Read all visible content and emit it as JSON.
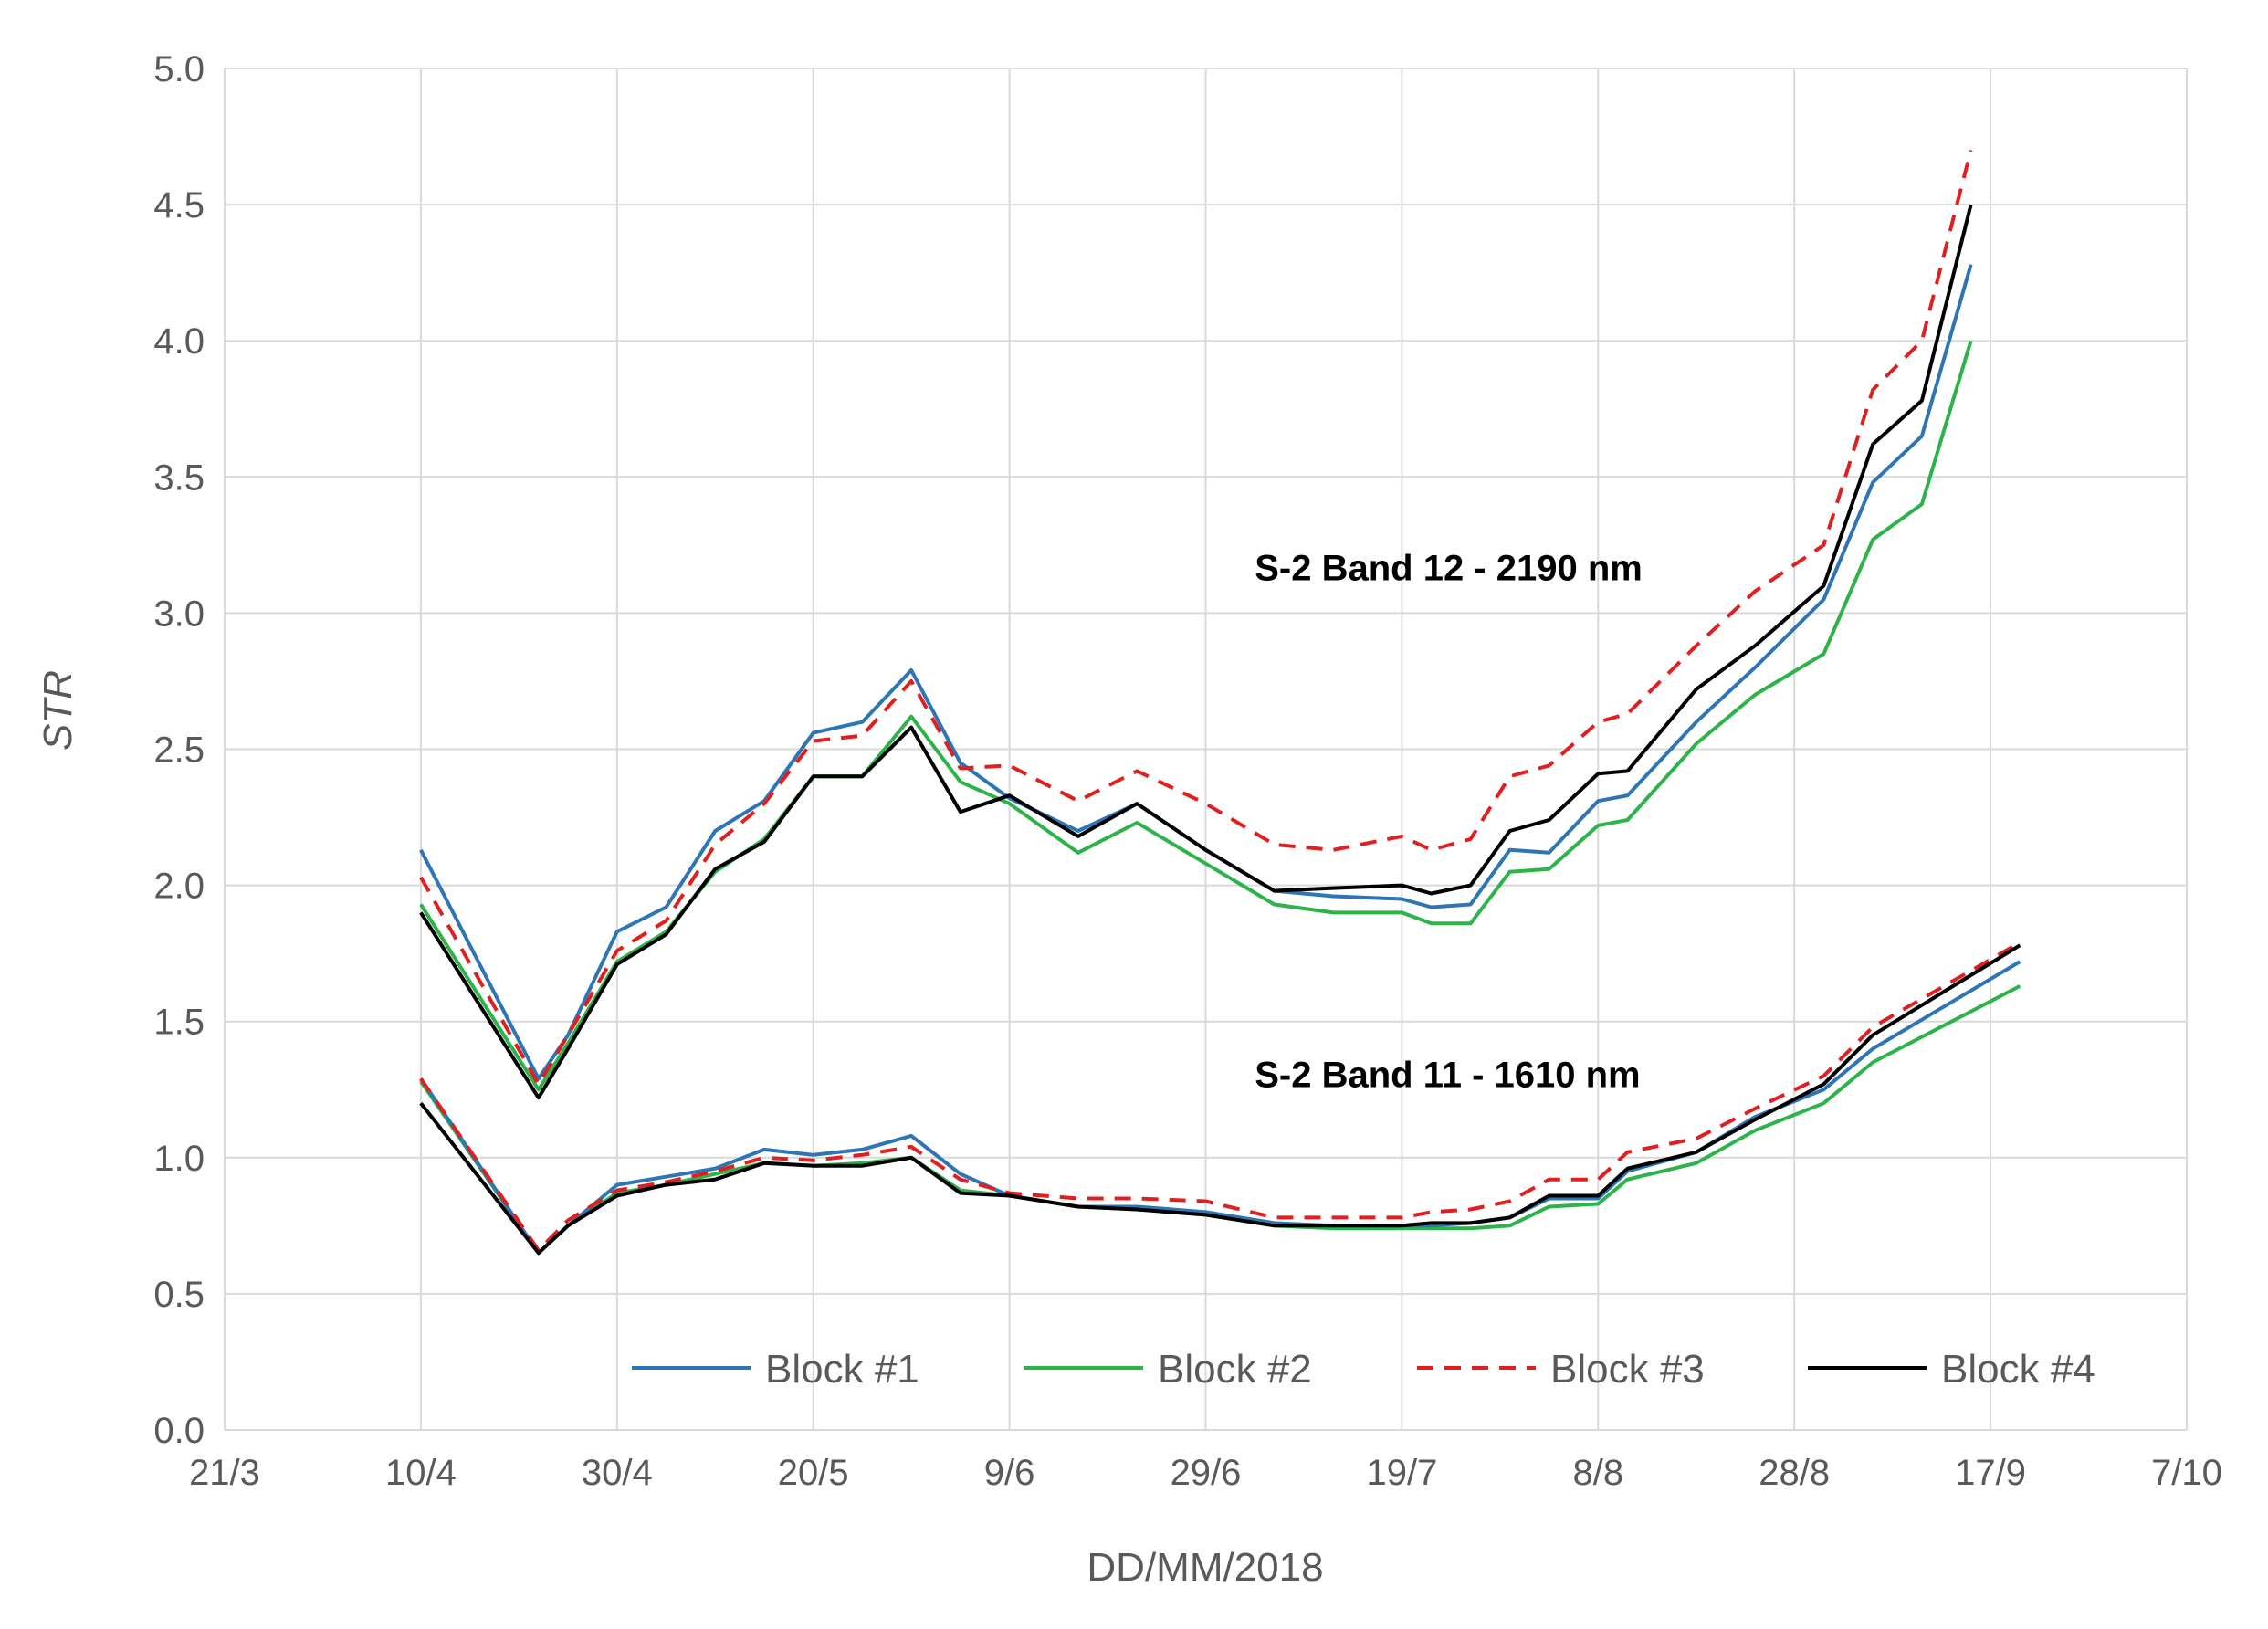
{
  "chart_data": {
    "type": "line",
    "title": "",
    "xlabel": "DD/MM/2018",
    "ylabel": "STR",
    "ylim": [
      0.0,
      5.0
    ],
    "xlim": [
      "2018-03-21",
      "2018-10-07"
    ],
    "y_ticks": [
      "0.0",
      "0.5",
      "1.0",
      "1.5",
      "2.0",
      "2.5",
      "3.0",
      "3.5",
      "4.0",
      "4.5",
      "5.0"
    ],
    "x_ticks": [
      {
        "date": "2018-03-21",
        "label": "21/3"
      },
      {
        "date": "2018-04-10",
        "label": "10/4"
      },
      {
        "date": "2018-04-30",
        "label": "30/4"
      },
      {
        "date": "2018-05-20",
        "label": "20/5"
      },
      {
        "date": "2018-06-09",
        "label": "9/6"
      },
      {
        "date": "2018-06-29",
        "label": "29/6"
      },
      {
        "date": "2018-07-19",
        "label": "19/7"
      },
      {
        "date": "2018-08-08",
        "label": "8/8"
      },
      {
        "date": "2018-08-28",
        "label": "28/8"
      },
      {
        "date": "2018-09-17",
        "label": "17/9"
      },
      {
        "date": "2018-10-07",
        "label": "7/10"
      }
    ],
    "grid": true,
    "legend_position": "bottom-right",
    "legend": [
      "Block #1",
      "Block #2",
      "Block #3",
      "Block #4"
    ],
    "colors": {
      "Block #1": "#2e75b6",
      "Block #2": "#2db34a",
      "Block #3": "#e02020",
      "Block #4": "#000000"
    },
    "dash": {
      "Block #1": "solid",
      "Block #2": "solid",
      "Block #3": "dashed",
      "Block #4": "solid"
    },
    "annotations": [
      {
        "text": "S-2 Band 12 - 2190 nm",
        "date": "2018-07-04",
        "value": 3.12
      },
      {
        "text": "S-2 Band 11 - 1610 nm",
        "date": "2018-07-04",
        "value": 1.26
      }
    ],
    "x": [
      "2018-04-10",
      "2018-04-22",
      "2018-04-25",
      "2018-04-30",
      "2018-05-05",
      "2018-05-10",
      "2018-05-15",
      "2018-05-20",
      "2018-05-25",
      "2018-05-30",
      "2018-06-04",
      "2018-06-09",
      "2018-06-16",
      "2018-06-22",
      "2018-06-29",
      "2018-07-06",
      "2018-07-12",
      "2018-07-19",
      "2018-07-22",
      "2018-07-26",
      "2018-07-30",
      "2018-08-03",
      "2018-08-08",
      "2018-08-11",
      "2018-08-18",
      "2018-08-24",
      "2018-08-31",
      "2018-09-05",
      "2018-09-10",
      "2018-09-15",
      "2018-09-20"
    ],
    "series": [
      {
        "name": "Block #1",
        "band": "12",
        "values": [
          2.13,
          1.29,
          1.45,
          1.83,
          1.92,
          2.2,
          2.31,
          2.56,
          2.6,
          2.79,
          2.45,
          2.32,
          2.2,
          2.3,
          2.13,
          1.98,
          1.96,
          1.95,
          1.92,
          1.93,
          2.13,
          2.12,
          2.31,
          2.33,
          2.6,
          2.8,
          3.05,
          3.48,
          3.65,
          4.28,
          null
        ]
      },
      {
        "name": "Block #2",
        "band": "12",
        "values": [
          1.93,
          1.25,
          1.42,
          1.72,
          1.83,
          2.05,
          2.17,
          2.4,
          2.4,
          2.62,
          2.38,
          2.3,
          2.12,
          2.23,
          2.08,
          1.93,
          1.9,
          1.9,
          1.86,
          1.86,
          2.05,
          2.06,
          2.22,
          2.24,
          2.52,
          2.7,
          2.85,
          3.27,
          3.4,
          4.0,
          null
        ]
      },
      {
        "name": "Block #3",
        "band": "12",
        "values": [
          2.03,
          1.27,
          1.45,
          1.76,
          1.87,
          2.15,
          2.3,
          2.53,
          2.55,
          2.75,
          2.43,
          2.44,
          2.31,
          2.42,
          2.3,
          2.15,
          2.13,
          2.18,
          2.13,
          2.17,
          2.4,
          2.44,
          2.6,
          2.63,
          2.88,
          3.08,
          3.25,
          3.82,
          4.0,
          4.7,
          null
        ]
      },
      {
        "name": "Block #4",
        "band": "12",
        "values": [
          1.9,
          1.22,
          1.4,
          1.71,
          1.82,
          2.06,
          2.16,
          2.4,
          2.4,
          2.58,
          2.27,
          2.33,
          2.18,
          2.3,
          2.13,
          1.98,
          1.99,
          2.0,
          1.97,
          2.0,
          2.2,
          2.24,
          2.41,
          2.42,
          2.72,
          2.88,
          3.1,
          3.62,
          3.78,
          4.5,
          null
        ]
      },
      {
        "name": "Block #1",
        "band": "11",
        "values": [
          1.29,
          0.65,
          0.75,
          0.9,
          0.93,
          0.96,
          1.03,
          1.01,
          1.03,
          1.08,
          0.94,
          0.86,
          0.82,
          0.82,
          0.8,
          0.76,
          0.75,
          0.75,
          0.75,
          0.76,
          0.78,
          0.85,
          0.85,
          0.95,
          1.02,
          1.15,
          1.25,
          1.4,
          null,
          null,
          1.72
        ]
      },
      {
        "name": "Block #2",
        "band": "11",
        "values": [
          1.28,
          0.65,
          0.75,
          0.87,
          0.9,
          0.94,
          0.98,
          0.97,
          0.98,
          1.0,
          0.88,
          0.86,
          0.82,
          0.81,
          0.79,
          0.75,
          0.74,
          0.74,
          0.74,
          0.74,
          0.75,
          0.82,
          0.83,
          0.92,
          0.98,
          1.1,
          1.2,
          1.35,
          null,
          null,
          1.63
        ]
      },
      {
        "name": "Block #3",
        "band": "11",
        "values": [
          1.29,
          0.66,
          0.77,
          0.88,
          0.91,
          0.95,
          1.0,
          0.99,
          1.01,
          1.04,
          0.92,
          0.87,
          0.85,
          0.85,
          0.84,
          0.78,
          0.78,
          0.78,
          0.8,
          0.81,
          0.84,
          0.92,
          0.92,
          1.02,
          1.07,
          1.18,
          1.3,
          1.48,
          null,
          null,
          1.79
        ]
      },
      {
        "name": "Block #4",
        "band": "11",
        "values": [
          1.2,
          0.65,
          0.75,
          0.86,
          0.9,
          0.92,
          0.98,
          0.97,
          0.97,
          1.0,
          0.87,
          0.86,
          0.82,
          0.81,
          0.79,
          0.75,
          0.75,
          0.75,
          0.76,
          0.76,
          0.78,
          0.86,
          0.86,
          0.96,
          1.02,
          1.14,
          1.27,
          1.45,
          null,
          null,
          1.78
        ]
      }
    ]
  }
}
